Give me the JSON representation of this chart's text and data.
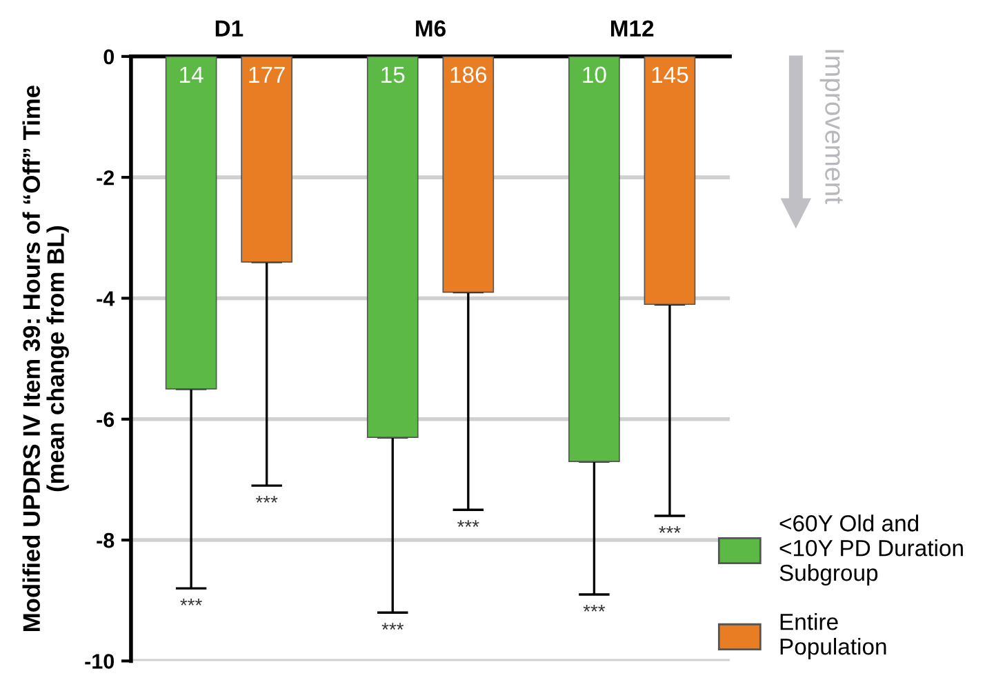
{
  "chart_data": {
    "type": "bar",
    "ylabel": "Modified UPDRS IV Item 39: Hours of “Off” Time\n(mean change from BL)",
    "categories": [
      "D1",
      "M6",
      "M12"
    ],
    "series": [
      {
        "name": "<60Y Old and\n<10Y PD Duration\nSubgroup",
        "color": "#5cb946",
        "values": [
          -5.5,
          -6.3,
          -6.7
        ],
        "errors": [
          [
            -8.8,
            -5.5
          ],
          [
            -9.2,
            -6.3
          ],
          [
            -8.9,
            -6.7
          ]
        ]
      },
      {
        "name": "Entire\nPopulation",
        "color": "#e87d24",
        "values": [
          -3.4,
          -3.9,
          -4.1
        ],
        "errors": [
          [
            -7.1,
            -3.4
          ],
          [
            -7.5,
            -3.9
          ],
          [
            -7.6,
            -4.1
          ]
        ]
      }
    ],
    "ylim": [
      -10,
      0
    ],
    "yticks": [
      0,
      -2,
      -4,
      -6,
      -8,
      -10
    ],
    "grid": "y",
    "legend": "bottom right",
    "annotations": [
      "14",
      "177",
      "15",
      "186",
      "10",
      "145",
      "***",
      "***",
      "***",
      "***",
      "***",
      "***",
      "Improvement"
    ]
  }
}
